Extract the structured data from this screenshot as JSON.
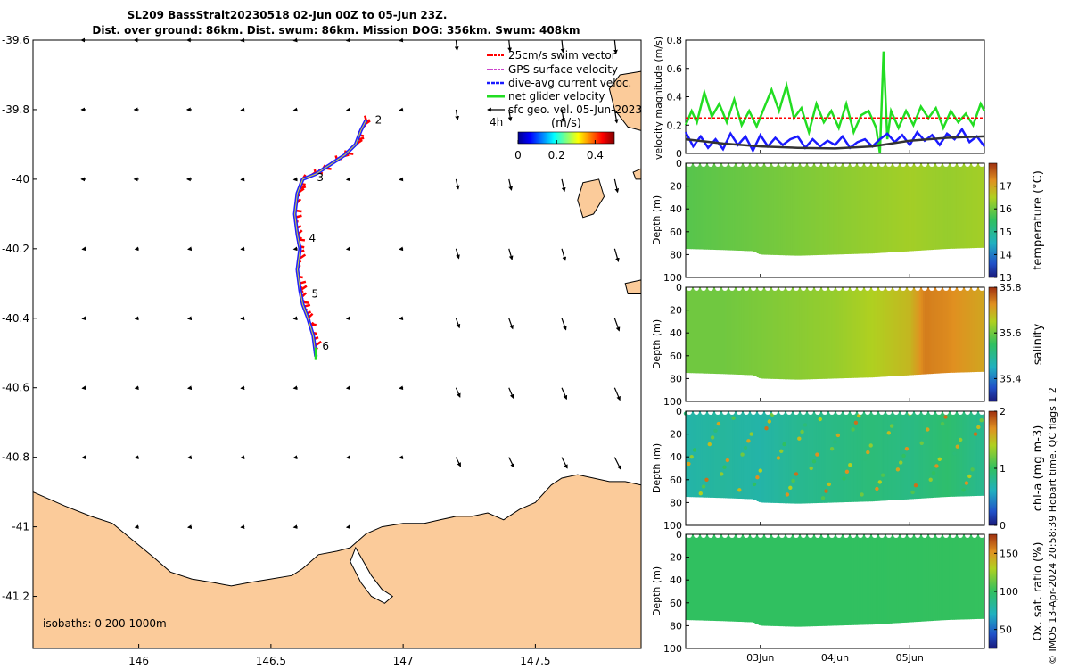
{
  "title_line1": "SL209 BassStrait20230518 02-Jun 00Z to 05-Jun 23Z.",
  "title_line2": "Dist. over ground: 86km. Dist. swum: 86km. Mission DOG: 356km. Swum: 408km",
  "watermark": "© IMOS 13-Apr-2024 20:58:39 Hobart time. QC flags 1  2",
  "colors": {
    "land": "#fbcb9a",
    "swim_vector": "#ff0000",
    "gps_velocity": "#cc44cc",
    "dive_avg": "#1a1aff",
    "net_glider": "#22dd22",
    "sfc_geo": "#000000",
    "track": "#2020ff"
  },
  "chart_data": [
    {
      "type": "map",
      "name": "glider track map",
      "xlim": [
        145.6,
        147.9
      ],
      "ylim": [
        -41.35,
        -39.6
      ],
      "xticks": [
        146,
        146.5,
        147,
        147.5
      ],
      "xtick_labels": [
        "146",
        "146.5",
        "147",
        "147.5"
      ],
      "yticks": [
        -39.6,
        -39.8,
        -40,
        -40.2,
        -40.4,
        -40.6,
        -40.8,
        -41,
        -41.2
      ],
      "ytick_labels": [
        "-39.6",
        "-39.8",
        "-40",
        "-40.2",
        "-40.4",
        "-40.6",
        "-40.8",
        "-41",
        "-41.2"
      ],
      "legend": {
        "position": "top-right",
        "entries": [
          "25cm/s swim vector",
          "GPS surface velocity",
          "dive-avg current veloc.",
          "net glider velocity",
          "sfc geo. vel. 05-Jun-2023"
        ]
      },
      "duration_label": "4h",
      "colorbar": {
        "label": "(m/s)",
        "range": [
          0,
          0.5
        ],
        "ticks": [
          0,
          0.2,
          0.4
        ],
        "tick_labels": [
          "0",
          "0.2",
          "0.4"
        ]
      },
      "isobaths_label": "isobaths: 0   200  1000m",
      "track": [
        [
          146.86,
          -39.83
        ],
        [
          146.84,
          -39.86
        ],
        [
          146.82,
          -39.9
        ],
        [
          146.78,
          -39.93
        ],
        [
          146.72,
          -39.96
        ],
        [
          146.67,
          -39.985
        ],
        [
          146.62,
          -40.0
        ],
        [
          146.6,
          -40.04
        ],
        [
          146.59,
          -40.1
        ],
        [
          146.6,
          -40.16
        ],
        [
          146.61,
          -40.2
        ],
        [
          146.6,
          -40.26
        ],
        [
          146.61,
          -40.32
        ],
        [
          146.62,
          -40.36
        ],
        [
          146.64,
          -40.4
        ],
        [
          146.66,
          -40.45
        ],
        [
          146.67,
          -40.51
        ]
      ],
      "day_markers": [
        {
          "label": "2",
          "lon": 146.86,
          "lat": -39.82
        },
        {
          "label": "3",
          "lon": 146.64,
          "lat": -39.985
        },
        {
          "label": "4",
          "lon": 146.61,
          "lat": -40.16
        },
        {
          "label": "5",
          "lon": 146.62,
          "lat": -40.32
        },
        {
          "label": "6",
          "lon": 146.66,
          "lat": -40.47
        }
      ],
      "current_vectors_note": "surface geostrophic velocity arrows on a 0.2 degree grid"
    },
    {
      "type": "line",
      "name": "velocity magnitude",
      "ylabel": "velocity magnitude (m/s)",
      "ylim": [
        0,
        0.8
      ],
      "yticks": [
        0,
        0.2,
        0.4,
        0.6,
        0.8
      ],
      "ytick_labels": [
        "0",
        "0.2",
        "0.4",
        "0.6",
        "0.8"
      ],
      "xlim": [
        2.0,
        6.0
      ],
      "series": [
        {
          "values_ref": "net_glider",
          "x": [
            2.0,
            2.08,
            2.15,
            2.25,
            2.35,
            2.45,
            2.55,
            2.65,
            2.75,
            2.85,
            2.95,
            3.05,
            3.15,
            3.25,
            3.35,
            3.45,
            3.55,
            3.65,
            3.75,
            3.85,
            3.95,
            4.05,
            4.15,
            4.25,
            4.35,
            4.45,
            4.55,
            4.6,
            4.65,
            4.7,
            4.75,
            4.85,
            4.95,
            5.05,
            5.15,
            5.25,
            5.35,
            5.45,
            5.55,
            5.65,
            5.75,
            5.85,
            5.95,
            6.0
          ],
          "y": [
            0.2,
            0.3,
            0.22,
            0.43,
            0.26,
            0.35,
            0.22,
            0.38,
            0.2,
            0.3,
            0.19,
            0.32,
            0.45,
            0.3,
            0.48,
            0.25,
            0.32,
            0.15,
            0.35,
            0.22,
            0.3,
            0.18,
            0.35,
            0.15,
            0.27,
            0.3,
            0.18,
            0.0,
            0.72,
            0.1,
            0.3,
            0.18,
            0.3,
            0.2,
            0.33,
            0.25,
            0.32,
            0.18,
            0.3,
            0.22,
            0.28,
            0.2,
            0.35,
            0.3
          ]
        },
        {
          "values_ref": "dive_avg",
          "x": [
            2.0,
            2.1,
            2.2,
            2.3,
            2.4,
            2.5,
            2.6,
            2.7,
            2.8,
            2.9,
            3.0,
            3.1,
            3.2,
            3.3,
            3.4,
            3.5,
            3.6,
            3.7,
            3.8,
            3.9,
            4.0,
            4.1,
            4.2,
            4.3,
            4.4,
            4.5,
            4.6,
            4.7,
            4.8,
            4.9,
            5.0,
            5.1,
            5.2,
            5.3,
            5.4,
            5.5,
            5.6,
            5.7,
            5.8,
            5.9,
            6.0
          ],
          "y": [
            0.15,
            0.05,
            0.12,
            0.04,
            0.1,
            0.03,
            0.14,
            0.06,
            0.12,
            0.02,
            0.13,
            0.05,
            0.11,
            0.06,
            0.1,
            0.12,
            0.04,
            0.1,
            0.05,
            0.09,
            0.06,
            0.12,
            0.04,
            0.08,
            0.1,
            0.05,
            0.1,
            0.14,
            0.08,
            0.13,
            0.06,
            0.15,
            0.09,
            0.13,
            0.06,
            0.14,
            0.1,
            0.17,
            0.08,
            0.12,
            0.05
          ]
        },
        {
          "values_ref": "sfc_geo",
          "x": [
            2.0,
            2.5,
            3.0,
            3.5,
            4.0,
            4.5,
            5.0,
            5.5,
            6.0
          ],
          "y": [
            0.1,
            0.07,
            0.05,
            0.04,
            0.035,
            0.05,
            0.09,
            0.11,
            0.12
          ]
        },
        {
          "values_ref": "swim_vector",
          "x": [
            2.0,
            6.0
          ],
          "y": [
            0.25,
            0.25
          ]
        }
      ]
    },
    {
      "type": "heatmap",
      "name": "temperature section",
      "ylabel": "Depth (m)",
      "yticks": [
        0,
        20,
        40,
        60,
        80,
        100
      ],
      "ytick_labels": [
        "0",
        "20",
        "40",
        "60",
        "80",
        "100"
      ],
      "colorbar": {
        "label": "temperature (°C)",
        "range": [
          13,
          18
        ],
        "ticks": [
          13,
          14,
          15,
          16,
          17
        ],
        "tick_labels": [
          "13",
          "14",
          "15",
          "16",
          "17"
        ]
      },
      "profile_values_x": [
        2.0,
        2.5,
        3.0,
        3.5,
        4.0,
        4.5,
        5.0,
        5.5,
        6.0
      ],
      "profile_values": [
        15.8,
        15.9,
        16.0,
        16.1,
        16.2,
        16.3,
        16.4,
        16.3,
        16.4
      ]
    },
    {
      "type": "heatmap",
      "name": "salinity section",
      "ylabel": "Depth (m)",
      "yticks": [
        0,
        20,
        40,
        60,
        80,
        100
      ],
      "ytick_labels": [
        "0",
        "20",
        "40",
        "60",
        "80",
        "100"
      ],
      "colorbar": {
        "label": "salinity",
        "range": [
          35.3,
          35.8
        ],
        "ticks": [
          35.4,
          35.6,
          35.8
        ],
        "tick_labels": [
          "35.4",
          "35.6",
          "35.8"
        ]
      },
      "profile_values_x": [
        2.0,
        2.5,
        3.0,
        3.5,
        4.0,
        4.5,
        5.0,
        5.2,
        5.5,
        6.0
      ],
      "profile_values": [
        35.6,
        35.6,
        35.61,
        35.62,
        35.63,
        35.65,
        35.68,
        35.74,
        35.73,
        35.7
      ]
    },
    {
      "type": "heatmap",
      "name": "chlorophyll section",
      "ylabel": "Depth (m)",
      "yticks": [
        0,
        20,
        40,
        60,
        80,
        100
      ],
      "ytick_labels": [
        "0",
        "20",
        "40",
        "60",
        "80",
        "100"
      ],
      "colorbar": {
        "label": "chl-a (mg m-3)",
        "range": [
          0,
          2
        ],
        "ticks": [
          0,
          1,
          2
        ],
        "tick_labels": [
          "0",
          "1",
          "2"
        ]
      },
      "profile_values_x": [
        2.0,
        2.5,
        3.0,
        3.5,
        4.0,
        4.5,
        5.0,
        5.5,
        6.0
      ],
      "profile_values": [
        0.7,
        0.75,
        0.7,
        0.8,
        0.85,
        0.9,
        0.85,
        0.95,
        0.8
      ]
    },
    {
      "type": "heatmap",
      "name": "oxygen saturation section",
      "ylabel": "Depth (m)",
      "yticks": [
        0,
        20,
        40,
        60,
        80,
        100
      ],
      "ytick_labels": [
        "0",
        "20",
        "40",
        "60",
        "80",
        "100"
      ],
      "colorbar": {
        "label": "Ox. sat. ratio (%)",
        "range": [
          25,
          175
        ],
        "ticks": [
          50,
          100,
          150
        ],
        "tick_labels": [
          "50",
          "100",
          "150"
        ]
      },
      "profile_values_x": [
        2.0,
        4.0,
        6.0
      ],
      "profile_values": [
        100,
        100,
        101
      ]
    }
  ],
  "time_axis": {
    "range": [
      2.0,
      6.0
    ],
    "ticks": [
      3,
      4,
      5
    ],
    "tick_labels": [
      "03Jun",
      "04Jun",
      "05Jun"
    ]
  },
  "bottom_depth_x": [
    2.0,
    2.5,
    2.9,
    3.0,
    3.5,
    4.0,
    4.5,
    5.0,
    5.5,
    6.0
  ],
  "bottom_depth_m": [
    75,
    76,
    77,
    80,
    81,
    80,
    79,
    77,
    75,
    74
  ]
}
